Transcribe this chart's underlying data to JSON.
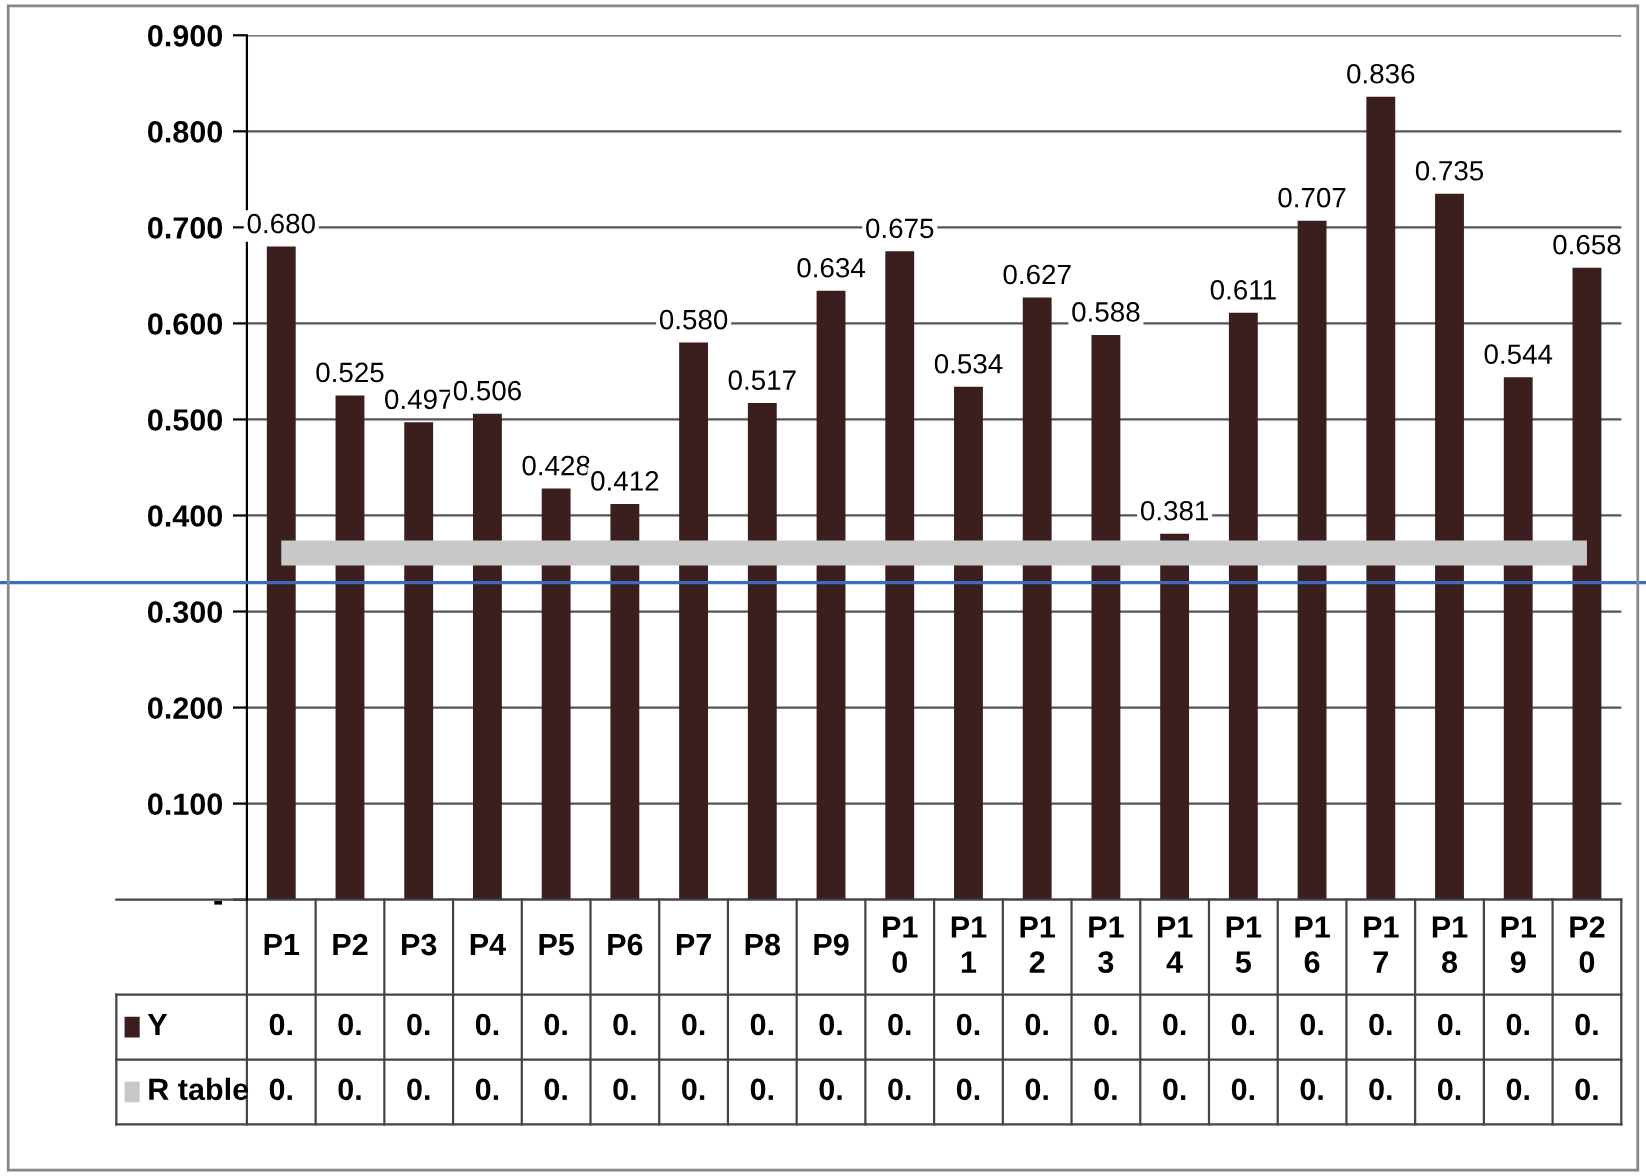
{
  "chart_data": {
    "type": "bar",
    "categories": [
      "P1",
      "P2",
      "P3",
      "P4",
      "P5",
      "P6",
      "P7",
      "P8",
      "P9",
      "P10",
      "P11",
      "P12",
      "P13",
      "P14",
      "P15",
      "P16",
      "P17",
      "P18",
      "P19",
      "P20"
    ],
    "series": [
      {
        "name": "Y",
        "color": "#3b1e1e",
        "values": [
          0.68,
          0.525,
          0.497,
          0.506,
          0.428,
          0.412,
          0.58,
          0.517,
          0.634,
          0.675,
          0.534,
          0.627,
          0.588,
          0.381,
          0.611,
          0.707,
          0.836,
          0.735,
          0.544,
          0.658
        ],
        "value_labels": [
          "0.680",
          "0.525",
          "0.497",
          "0.506",
          "0.428",
          "0.412",
          "0.580",
          "0.517",
          "0.634",
          "0.675",
          "0.534",
          "0.627",
          "0.588",
          "0.381",
          "0.611",
          "0.707",
          "0.836",
          "0.735",
          "0.544",
          "0.658"
        ]
      },
      {
        "name": "R table",
        "type": "line",
        "color": "#c8c8c8",
        "values": [
          0.361,
          0.361,
          0.361,
          0.361,
          0.361,
          0.361,
          0.361,
          0.361,
          0.361,
          0.361,
          0.361,
          0.361,
          0.361,
          0.361,
          0.361,
          0.361,
          0.361,
          0.361,
          0.361,
          0.361
        ]
      }
    ],
    "annotations": [
      "0.",
      "0.",
      "0.",
      "0.",
      "0.",
      "0.",
      "0.",
      "0.",
      "0.",
      "0.",
      "0.",
      "0.",
      "0.",
      "0.",
      "0.",
      "0.",
      "0.",
      "0.",
      "0.",
      "0.",
      "0.",
      "0.",
      "0.",
      "0.",
      "0.",
      "0.",
      "0.",
      "0.",
      "0.",
      "0.",
      "0.",
      "0.",
      "0.",
      "0.",
      "0.",
      "0.",
      "0.",
      "0.",
      "0.",
      "0."
    ],
    "ylim": [
      0,
      0.9
    ],
    "yticks": [
      {
        "value": 0,
        "label": "-"
      },
      {
        "value": 0.1,
        "label": "0.100"
      },
      {
        "value": 0.2,
        "label": "0.200"
      },
      {
        "value": 0.3,
        "label": "0.300"
      },
      {
        "value": 0.4,
        "label": "0.400"
      },
      {
        "value": 0.5,
        "label": "0.500"
      },
      {
        "value": 0.6,
        "label": "0.600"
      },
      {
        "value": 0.7,
        "label": "0.700"
      },
      {
        "value": 0.8,
        "label": "0.800"
      },
      {
        "value": 0.9,
        "label": "0.900"
      }
    ],
    "grid": "y",
    "legend": "bottom left",
    "ref_lines": [
      {
        "axis": "y",
        "value": 0.33,
        "color": "#3a6cc0",
        "line_style": "solid"
      }
    ]
  }
}
